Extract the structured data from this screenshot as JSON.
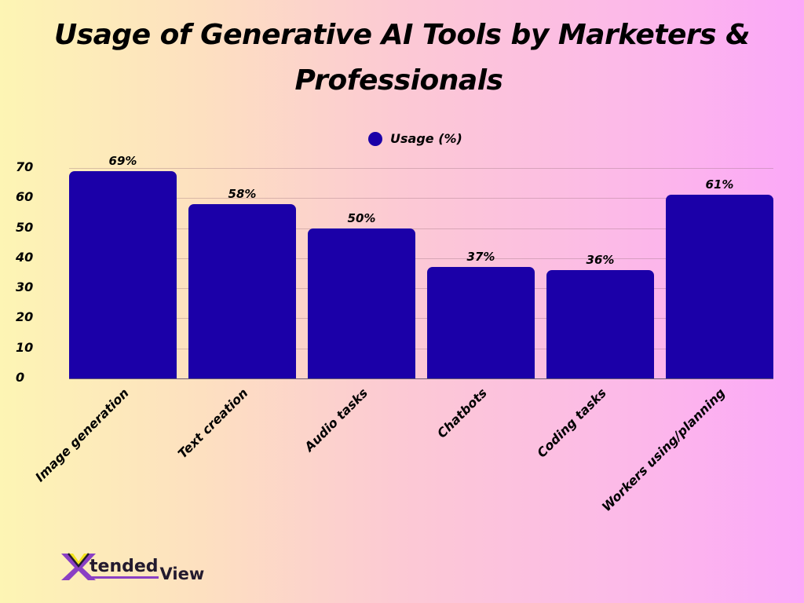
{
  "title": {
    "line1": "Usage of Generative AI Tools by Marketers &",
    "line2": "Professionals"
  },
  "legend": {
    "label": "Usage (%)",
    "color": "#1b00a8"
  },
  "y_ticks": [
    "70",
    "60",
    "50",
    "40",
    "30",
    "20",
    "10",
    "0"
  ],
  "bars": [
    {
      "category": "Image generation",
      "value": 69,
      "label": "69%"
    },
    {
      "category": "Text creation",
      "value": 58,
      "label": "58%"
    },
    {
      "category": "Audio tasks",
      "value": 50,
      "label": "50%"
    },
    {
      "category": "Chatbots",
      "value": 37,
      "label": "37%"
    },
    {
      "category": "Coding tasks",
      "value": 36,
      "label": "36%"
    },
    {
      "category": "Workers using/planning",
      "value": 61,
      "label": "61%"
    }
  ],
  "logo": {
    "text1": "tended",
    "text2": "View",
    "mark": "X"
  },
  "chart_data": {
    "type": "bar",
    "title": "Usage of Generative AI Tools by Marketers & Professionals",
    "categories": [
      "Image generation",
      "Text creation",
      "Audio tasks",
      "Chatbots",
      "Coding tasks",
      "Workers using/planning"
    ],
    "series": [
      {
        "name": "Usage (%)",
        "values": [
          69,
          58,
          50,
          37,
          36,
          61
        ],
        "color": "#1b00a8"
      }
    ],
    "data_labels": [
      "69%",
      "58%",
      "50%",
      "37%",
      "36%",
      "61%"
    ],
    "xlabel": "",
    "ylabel": "",
    "ylim": [
      0,
      70
    ],
    "yticks": [
      0,
      10,
      20,
      30,
      40,
      50,
      60,
      70
    ],
    "grid": true,
    "legend_position": "top"
  }
}
